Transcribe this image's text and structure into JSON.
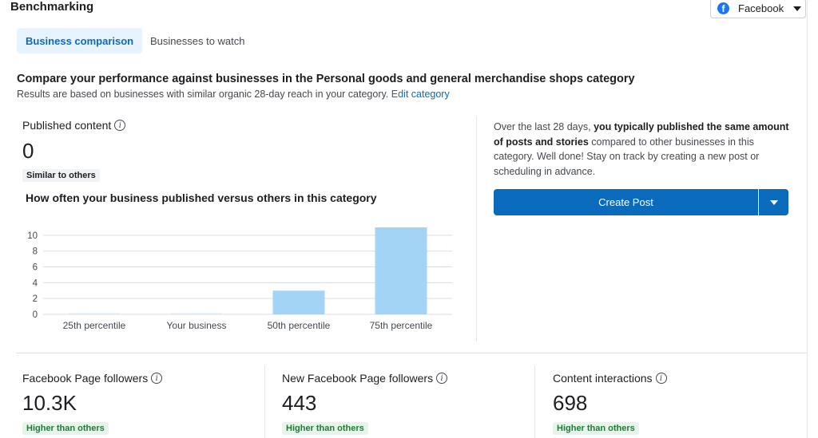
{
  "header": {
    "title": "Benchmarking",
    "platform": "Facebook"
  },
  "tabs": [
    {
      "label": "Business comparison",
      "active": true
    },
    {
      "label": "Businesses to watch",
      "active": false
    }
  ],
  "comparison": {
    "heading": "Compare your performance against businesses in the Personal goods and general merchandise shops category",
    "subtext": "Results are based on businesses with similar organic 28-day reach in your category.",
    "edit_link": "Edit category"
  },
  "published": {
    "label": "Published content",
    "value": "0",
    "badge": "Similar to others",
    "chart_heading": "How often your business published versus others in this category"
  },
  "insight": {
    "pre": "Over the last 28 days,",
    "bold": "you typically published the same amount of posts and stories",
    "post": "compared to other businesses in this category. Well done! Stay on track by creating a new post or scheduling in advance."
  },
  "create_post_label": "Create Post",
  "metrics": [
    {
      "label": "Facebook Page followers",
      "value": "10.3K",
      "badge": "Higher than others"
    },
    {
      "label": "New Facebook Page followers",
      "value": "443",
      "badge": "Higher than others"
    },
    {
      "label": "Content interactions",
      "value": "698",
      "badge": "Higher than others"
    }
  ],
  "colors": {
    "accent": "#0a6bbc",
    "bar": "#a4d4f5",
    "positive": "#1e7b34"
  },
  "chart_data": {
    "type": "bar",
    "categories": [
      "25th percentile",
      "Your business",
      "50th percentile",
      "75th percentile"
    ],
    "values": [
      0,
      0,
      3,
      11
    ],
    "title": "How often your business published versus others in this category",
    "xlabel": "",
    "ylabel": "",
    "yticks": [
      0,
      2,
      4,
      6,
      8,
      10
    ],
    "ylim": [
      0,
      11
    ],
    "grid": true
  }
}
